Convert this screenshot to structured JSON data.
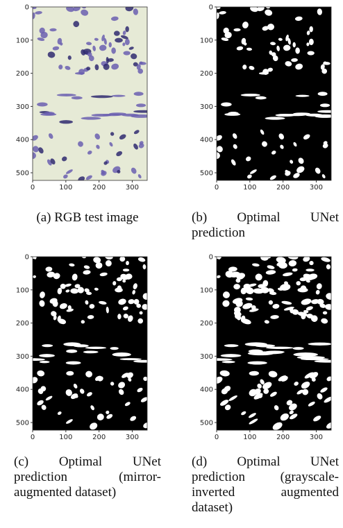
{
  "figure": {
    "panels": [
      {
        "caption": "(a) RGB test image",
        "xlim": [
          0,
          345
        ],
        "ylim": [
          523,
          0
        ],
        "xticks": [
          0,
          100,
          200,
          300
        ],
        "yticks": [
          0,
          100,
          200,
          300,
          400,
          500
        ]
      },
      {
        "caption": "(b) Optimal UNet prediction",
        "xlim": [
          0,
          345
        ],
        "ylim": [
          523,
          0
        ],
        "xticks": [
          0,
          100,
          200,
          300
        ],
        "yticks": [
          0,
          100,
          200,
          300,
          400,
          500
        ]
      },
      {
        "caption": "(c) Optimal UNet prediction (mirror-augmented dataset)",
        "xlim": [
          0,
          345
        ],
        "ylim": [
          523,
          0
        ],
        "xticks": [
          0,
          100,
          200,
          300
        ],
        "yticks": [
          0,
          100,
          200,
          300,
          400,
          500
        ]
      },
      {
        "caption": "(d) Optimal UNet prediction (grayscale-inverted augmented dataset)",
        "xlim": [
          0,
          345
        ],
        "ylim": [
          523,
          0
        ],
        "xticks": [
          0,
          100,
          200,
          300
        ],
        "yticks": [
          0,
          100,
          200,
          300,
          400,
          500
        ]
      }
    ]
  }
}
